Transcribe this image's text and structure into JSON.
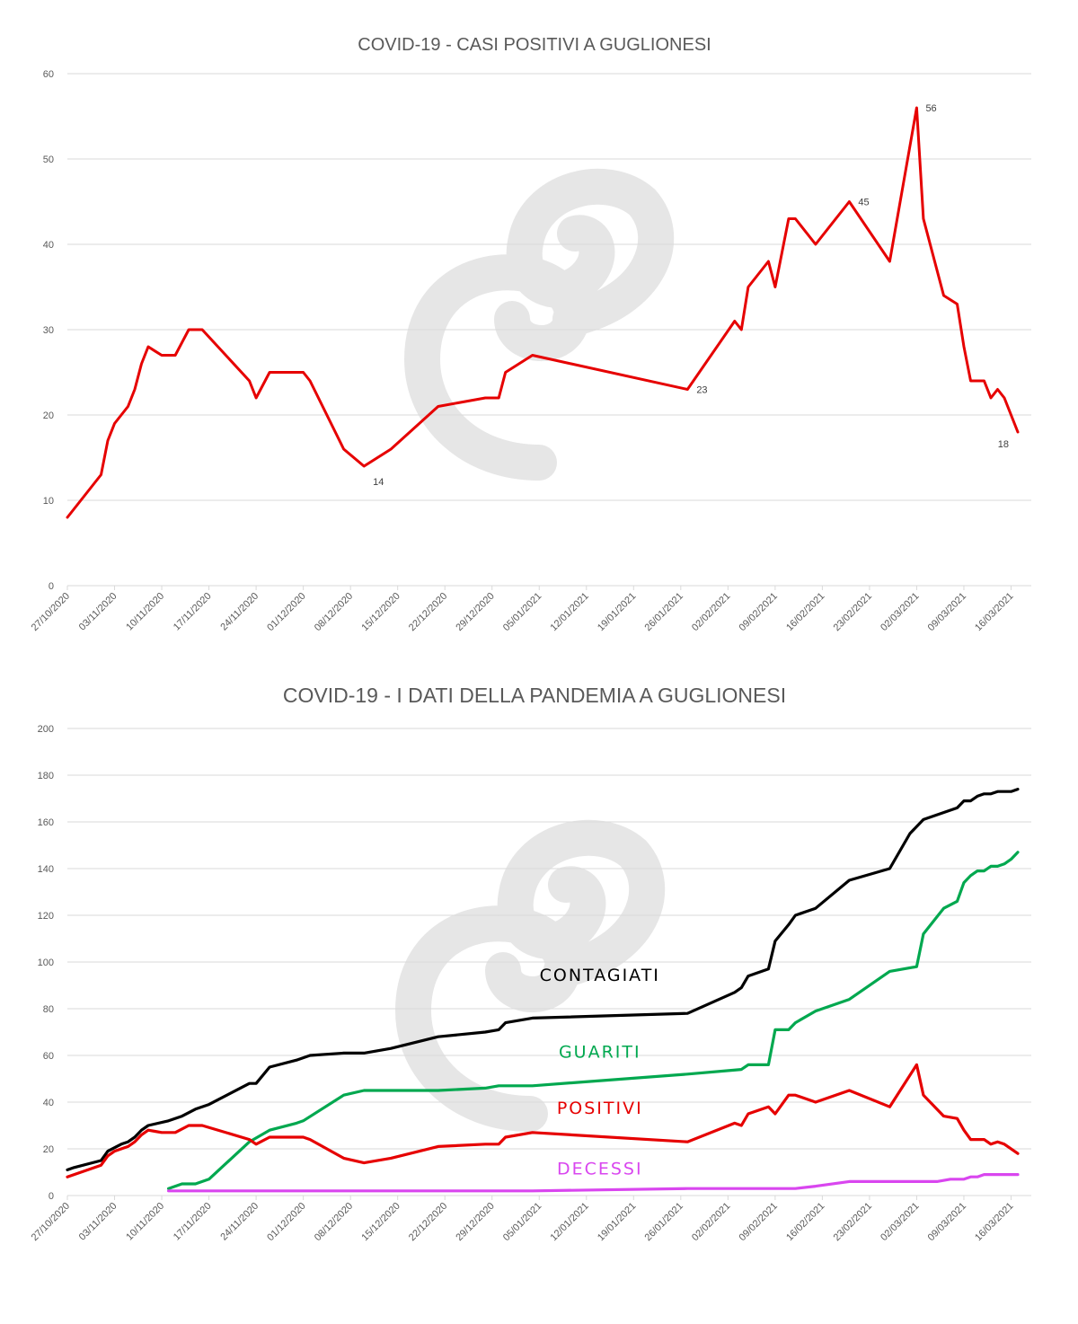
{
  "colors": {
    "positivi": "#e60000",
    "contagiati": "#000000",
    "guariti": "#00a84f",
    "decessi": "#d946ef",
    "watermark": "#e6e6e6"
  },
  "watermark_icon": "swirl-logo-watermark",
  "chart_data": [
    {
      "type": "line",
      "title": "COVID-19 - CASI POSITIVI A GUGLIONESI",
      "xlabel": "",
      "ylabel": "",
      "ylim": [
        0,
        60
      ],
      "yticks": [
        "0",
        "10",
        "20",
        "30",
        "40",
        "50",
        "60"
      ],
      "grid": true,
      "x_start": "27/10/2020",
      "x_end": "19/03/2021",
      "xticks": [
        "27/10/2020",
        "03/11/2020",
        "10/11/2020",
        "17/11/2020",
        "24/11/2020",
        "01/12/2020",
        "08/12/2020",
        "15/12/2020",
        "22/12/2020",
        "29/12/2020",
        "05/01/2021",
        "12/01/2021",
        "19/01/2021",
        "26/01/2021",
        "02/02/2021",
        "09/02/2021",
        "16/02/2021",
        "23/02/2021",
        "02/03/2021",
        "09/03/2021",
        "16/03/2021"
      ],
      "series": [
        {
          "color": "#e60000",
          "points": [
            [
              "27/10/2020",
              8
            ],
            [
              "01/11/2020",
              13
            ],
            [
              "02/11/2020",
              17
            ],
            [
              "03/11/2020",
              19
            ],
            [
              "04/11/2020",
              20
            ],
            [
              "05/11/2020",
              21
            ],
            [
              "06/11/2020",
              23
            ],
            [
              "07/11/2020",
              26
            ],
            [
              "08/11/2020",
              28
            ],
            [
              "09/11/2020",
              27.5
            ],
            [
              "10/11/2020",
              27
            ],
            [
              "11/11/2020",
              27
            ],
            [
              "12/11/2020",
              27
            ],
            [
              "14/11/2020",
              30
            ],
            [
              "16/11/2020",
              30
            ],
            [
              "23/11/2020",
              24
            ],
            [
              "24/11/2020",
              22
            ],
            [
              "26/11/2020",
              25
            ],
            [
              "01/12/2020",
              25
            ],
            [
              "02/12/2020",
              24
            ],
            [
              "07/12/2020",
              16
            ],
            [
              "10/12/2020",
              14
            ],
            [
              "14/12/2020",
              16
            ],
            [
              "21/12/2020",
              21
            ],
            [
              "28/12/2020",
              22
            ],
            [
              "30/12/2020",
              22
            ],
            [
              "31/12/2020",
              25
            ],
            [
              "04/01/2021",
              27
            ],
            [
              "27/01/2021",
              23
            ],
            [
              "03/02/2021",
              31
            ],
            [
              "04/02/2021",
              30
            ],
            [
              "05/02/2021",
              35
            ],
            [
              "08/02/2021",
              38
            ],
            [
              "09/02/2021",
              35
            ],
            [
              "11/02/2021",
              43
            ],
            [
              "12/02/2021",
              43
            ],
            [
              "15/02/2021",
              40
            ],
            [
              "20/02/2021",
              45
            ],
            [
              "26/02/2021",
              38
            ],
            [
              "02/03/2021",
              56
            ],
            [
              "03/03/2021",
              43
            ],
            [
              "06/03/2021",
              34
            ],
            [
              "08/03/2021",
              33
            ],
            [
              "09/03/2021",
              28
            ],
            [
              "10/03/2021",
              24
            ],
            [
              "12/03/2021",
              24
            ],
            [
              "13/03/2021",
              22
            ],
            [
              "14/03/2021",
              23
            ],
            [
              "15/03/2021",
              22
            ],
            [
              "17/03/2021",
              18
            ]
          ]
        }
      ],
      "data_labels": [
        {
          "x": "10/12/2020",
          "y": 14,
          "text": "14",
          "pos": "below-right"
        },
        {
          "x": "27/01/2021",
          "y": 23,
          "text": "23",
          "pos": "right"
        },
        {
          "x": "20/02/2021",
          "y": 45,
          "text": "45",
          "pos": "right"
        },
        {
          "x": "02/03/2021",
          "y": 56,
          "text": "56",
          "pos": "right"
        },
        {
          "x": "17/03/2021",
          "y": 18,
          "text": "18",
          "pos": "below-left"
        }
      ]
    },
    {
      "type": "line",
      "title": "COVID-19 - I DATI DELLA PANDEMIA A GUGLIONESI",
      "xlabel": "",
      "ylabel": "",
      "ylim": [
        0,
        200
      ],
      "yticks": [
        "0",
        "20",
        "40",
        "60",
        "80",
        "100",
        "120",
        "140",
        "160",
        "180",
        "200"
      ],
      "grid": true,
      "x_start": "27/10/2020",
      "x_end": "19/03/2021",
      "xticks": [
        "27/10/2020",
        "03/11/2020",
        "10/11/2020",
        "17/11/2020",
        "24/11/2020",
        "01/12/2020",
        "08/12/2020",
        "15/12/2020",
        "22/12/2020",
        "29/12/2020",
        "05/01/2021",
        "12/01/2021",
        "19/01/2021",
        "26/01/2021",
        "02/02/2021",
        "09/02/2021",
        "16/02/2021",
        "23/02/2021",
        "02/03/2021",
        "09/03/2021",
        "16/03/2021"
      ],
      "series": [
        {
          "name": "CONTAGIATI",
          "color": "#000000",
          "label_at": [
            "14/01/2021",
            92
          ],
          "points": [
            [
              "27/10/2020",
              11
            ],
            [
              "28/10/2020",
              12
            ],
            [
              "01/11/2020",
              15
            ],
            [
              "02/11/2020",
              19
            ],
            [
              "04/11/2020",
              22
            ],
            [
              "05/11/2020",
              23
            ],
            [
              "06/11/2020",
              25
            ],
            [
              "07/11/2020",
              28
            ],
            [
              "08/11/2020",
              30
            ],
            [
              "11/11/2020",
              32
            ],
            [
              "13/11/2020",
              34
            ],
            [
              "15/11/2020",
              37
            ],
            [
              "17/11/2020",
              39
            ],
            [
              "23/11/2020",
              48
            ],
            [
              "24/11/2020",
              48
            ],
            [
              "26/11/2020",
              55
            ],
            [
              "30/11/2020",
              58
            ],
            [
              "02/12/2020",
              60
            ],
            [
              "07/12/2020",
              61
            ],
            [
              "10/12/2020",
              61
            ],
            [
              "14/12/2020",
              63
            ],
            [
              "21/12/2020",
              68
            ],
            [
              "28/12/2020",
              70
            ],
            [
              "30/12/2020",
              71
            ],
            [
              "31/12/2020",
              74
            ],
            [
              "04/01/2021",
              76
            ],
            [
              "27/01/2021",
              78
            ],
            [
              "03/02/2021",
              87
            ],
            [
              "04/02/2021",
              89
            ],
            [
              "05/02/2021",
              94
            ],
            [
              "08/02/2021",
              97
            ],
            [
              "09/02/2021",
              109
            ],
            [
              "11/02/2021",
              116
            ],
            [
              "12/02/2021",
              120
            ],
            [
              "15/02/2021",
              123
            ],
            [
              "20/02/2021",
              135
            ],
            [
              "26/02/2021",
              140
            ],
            [
              "01/03/2021",
              155
            ],
            [
              "03/03/2021",
              161
            ],
            [
              "08/03/2021",
              166
            ],
            [
              "09/03/2021",
              169
            ],
            [
              "10/03/2021",
              169
            ],
            [
              "11/03/2021",
              171
            ],
            [
              "12/03/2021",
              172
            ],
            [
              "13/03/2021",
              172
            ],
            [
              "14/03/2021",
              173
            ],
            [
              "16/03/2021",
              173
            ],
            [
              "17/03/2021",
              174
            ]
          ]
        },
        {
          "name": "GUARITI",
          "color": "#00a84f",
          "label_at": [
            "14/01/2021",
            59
          ],
          "points": [
            [
              "11/11/2020",
              3
            ],
            [
              "13/11/2020",
              5
            ],
            [
              "15/11/2020",
              5
            ],
            [
              "17/11/2020",
              7
            ],
            [
              "23/11/2020",
              23
            ],
            [
              "26/11/2020",
              28
            ],
            [
              "30/11/2020",
              31
            ],
            [
              "01/12/2020",
              32
            ],
            [
              "07/12/2020",
              43
            ],
            [
              "10/12/2020",
              45
            ],
            [
              "21/12/2020",
              45
            ],
            [
              "28/12/2020",
              46
            ],
            [
              "30/12/2020",
              47
            ],
            [
              "04/01/2021",
              47
            ],
            [
              "27/01/2021",
              52
            ],
            [
              "04/02/2021",
              54
            ],
            [
              "05/02/2021",
              56
            ],
            [
              "08/02/2021",
              56
            ],
            [
              "09/02/2021",
              71
            ],
            [
              "11/02/2021",
              71
            ],
            [
              "12/02/2021",
              74
            ],
            [
              "15/02/2021",
              79
            ],
            [
              "20/02/2021",
              84
            ],
            [
              "26/02/2021",
              96
            ],
            [
              "02/03/2021",
              98
            ],
            [
              "03/03/2021",
              112
            ],
            [
              "06/03/2021",
              123
            ],
            [
              "08/03/2021",
              126
            ],
            [
              "09/03/2021",
              134
            ],
            [
              "10/03/2021",
              137
            ],
            [
              "11/03/2021",
              139
            ],
            [
              "12/03/2021",
              139
            ],
            [
              "13/03/2021",
              141
            ],
            [
              "14/03/2021",
              141
            ],
            [
              "15/03/2021",
              142
            ],
            [
              "16/03/2021",
              144
            ],
            [
              "17/03/2021",
              147
            ]
          ]
        },
        {
          "name": "POSITIVI",
          "color": "#e60000",
          "label_at": [
            "14/01/2021",
            35
          ],
          "points": [
            [
              "27/10/2020",
              8
            ],
            [
              "01/11/2020",
              13
            ],
            [
              "02/11/2020",
              17
            ],
            [
              "03/11/2020",
              19
            ],
            [
              "04/11/2020",
              20
            ],
            [
              "05/11/2020",
              21
            ],
            [
              "06/11/2020",
              23
            ],
            [
              "07/11/2020",
              26
            ],
            [
              "08/11/2020",
              28
            ],
            [
              "09/11/2020",
              27.5
            ],
            [
              "10/11/2020",
              27
            ],
            [
              "11/11/2020",
              27
            ],
            [
              "12/11/2020",
              27
            ],
            [
              "14/11/2020",
              30
            ],
            [
              "16/11/2020",
              30
            ],
            [
              "23/11/2020",
              24
            ],
            [
              "24/11/2020",
              22
            ],
            [
              "26/11/2020",
              25
            ],
            [
              "01/12/2020",
              25
            ],
            [
              "02/12/2020",
              24
            ],
            [
              "07/12/2020",
              16
            ],
            [
              "10/12/2020",
              14
            ],
            [
              "14/12/2020",
              16
            ],
            [
              "21/12/2020",
              21
            ],
            [
              "28/12/2020",
              22
            ],
            [
              "30/12/2020",
              22
            ],
            [
              "31/12/2020",
              25
            ],
            [
              "04/01/2021",
              27
            ],
            [
              "27/01/2021",
              23
            ],
            [
              "03/02/2021",
              31
            ],
            [
              "04/02/2021",
              30
            ],
            [
              "05/02/2021",
              35
            ],
            [
              "08/02/2021",
              38
            ],
            [
              "09/02/2021",
              35
            ],
            [
              "11/02/2021",
              43
            ],
            [
              "12/02/2021",
              43
            ],
            [
              "15/02/2021",
              40
            ],
            [
              "20/02/2021",
              45
            ],
            [
              "26/02/2021",
              38
            ],
            [
              "02/03/2021",
              56
            ],
            [
              "03/03/2021",
              43
            ],
            [
              "06/03/2021",
              34
            ],
            [
              "08/03/2021",
              33
            ],
            [
              "09/03/2021",
              28
            ],
            [
              "10/03/2021",
              24
            ],
            [
              "12/03/2021",
              24
            ],
            [
              "13/03/2021",
              22
            ],
            [
              "14/03/2021",
              23
            ],
            [
              "15/03/2021",
              22
            ],
            [
              "17/03/2021",
              18
            ]
          ]
        },
        {
          "name": "DECESSI",
          "color": "#d946ef",
          "label_at": [
            "14/01/2021",
            9
          ],
          "points": [
            [
              "11/11/2020",
              2
            ],
            [
              "04/01/2021",
              2
            ],
            [
              "27/01/2021",
              3
            ],
            [
              "12/02/2021",
              3
            ],
            [
              "15/02/2021",
              4
            ],
            [
              "20/02/2021",
              6
            ],
            [
              "05/03/2021",
              6
            ],
            [
              "07/03/2021",
              7
            ],
            [
              "09/03/2021",
              7
            ],
            [
              "10/03/2021",
              8
            ],
            [
              "11/03/2021",
              8
            ],
            [
              "12/03/2021",
              9
            ],
            [
              "17/03/2021",
              9
            ]
          ]
        }
      ]
    }
  ]
}
